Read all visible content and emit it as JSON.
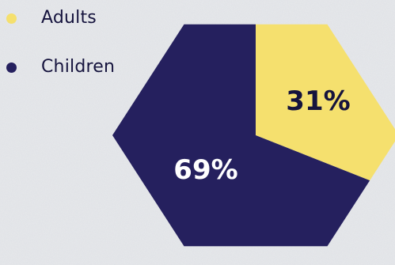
{
  "chart_data": {
    "type": "pie",
    "shape": "hexagon",
    "categories": [
      "Adults",
      "Children"
    ],
    "values": [
      31,
      69
    ],
    "labels": [
      "31%",
      "69%"
    ],
    "colors": [
      "#f5e06e",
      "#25205e"
    ],
    "label_colors": [
      "#15133d",
      "#ffffff"
    ],
    "legend_position": "top-left",
    "start_angle": "top, clockwise",
    "title": "",
    "xlabel": "",
    "ylabel": ""
  },
  "legend": {
    "items": [
      {
        "label": "Adults",
        "color": "#f5e06e"
      },
      {
        "label": "Children",
        "color": "#25205e"
      }
    ]
  }
}
